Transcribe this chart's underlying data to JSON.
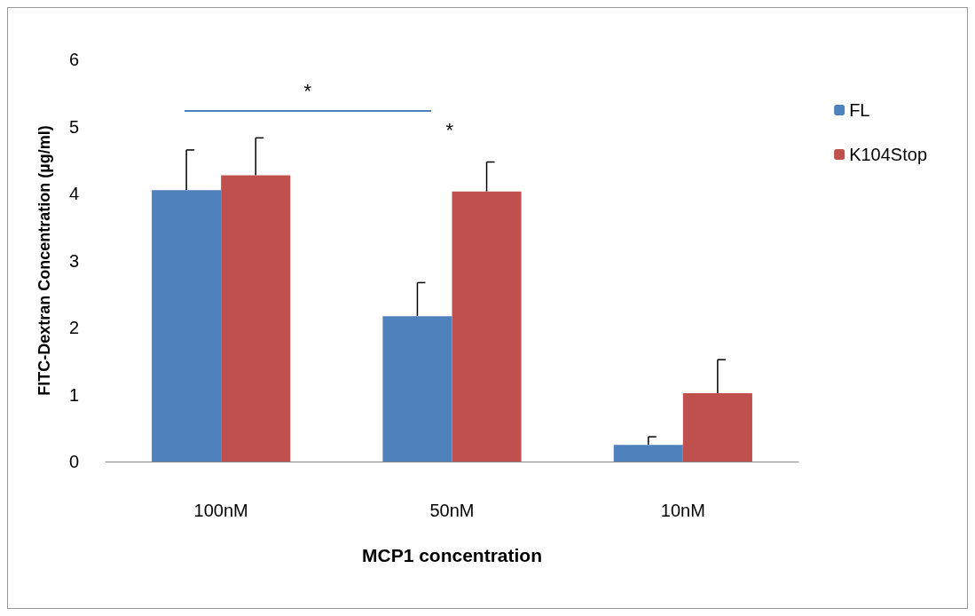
{
  "chart_data": {
    "type": "bar",
    "xlabel": "MCP1 concentration",
    "ylabel": "FITC-Dextran Concentration (µg/ml)",
    "categories": [
      "100nM",
      "50nM",
      "10nM"
    ],
    "series": [
      {
        "name": "FL",
        "color": "#4f81bd",
        "values": [
          4.05,
          2.17,
          0.25
        ],
        "errors": [
          [
            4.05,
            4.65
          ],
          [
            2.17,
            2.67
          ],
          [
            0.25,
            0.37
          ]
        ]
      },
      {
        "name": "K104Stop",
        "color": "#c0504d",
        "values": [
          4.27,
          4.03,
          1.02
        ],
        "errors": [
          [
            4.27,
            4.83
          ],
          [
            4.03,
            4.47
          ],
          [
            1.02,
            1.52
          ]
        ]
      }
    ],
    "ylim": [
      0,
      6
    ],
    "yticks": [
      0,
      1,
      2,
      3,
      4,
      5,
      6
    ],
    "grid": false,
    "legend": "top right",
    "annotations": [
      "*",
      "*"
    ]
  }
}
